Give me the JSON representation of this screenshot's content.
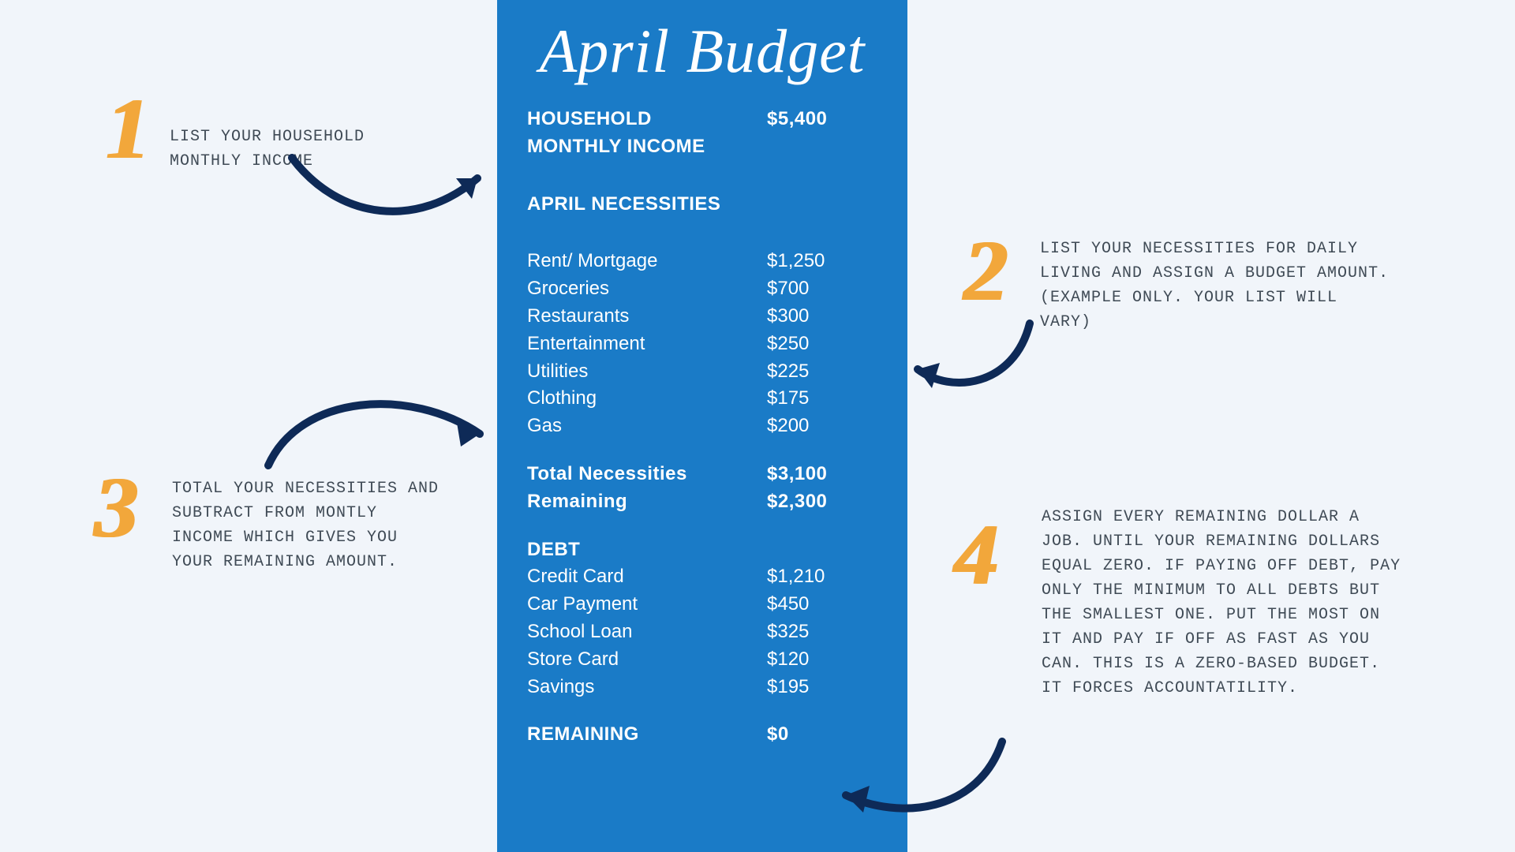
{
  "colors": {
    "page_bg": "#f1f5fa",
    "panel_bg": "#1a7bc7",
    "panel_text": "#ffffff",
    "digit": "#f2a73b",
    "note_text": "#3f4a55",
    "arrow": "#0e2a57"
  },
  "panel": {
    "title": "April Budget",
    "income_label": "HOUSEHOLD MONTHLY INCOME",
    "income_value": "$5,400",
    "nec_header": "APRIL NECESSITIES",
    "necessities": [
      {
        "label": "Rent/ Mortgage",
        "value": "$1,250"
      },
      {
        "label": "Groceries",
        "value": "$700"
      },
      {
        "label": "Restaurants",
        "value": "$300"
      },
      {
        "label": "Entertainment",
        "value": "$250"
      },
      {
        "label": "Utilities",
        "value": "$225"
      },
      {
        "label": "Clothing",
        "value": "$175"
      },
      {
        "label": "Gas",
        "value": "$200"
      }
    ],
    "total_label": "Total Necessities",
    "total_value": "$3,100",
    "remaining1_label": "Remaining",
    "remaining1_value": "$2,300",
    "debt_header": "DEBT",
    "debts": [
      {
        "label": "Credit Card",
        "value": "$1,210"
      },
      {
        "label": "Car Payment",
        "value": "$450"
      },
      {
        "label": "School Loan",
        "value": "$325"
      },
      {
        "label": "Store Card",
        "value": "$120"
      },
      {
        "label": "Savings",
        "value": "$195"
      }
    ],
    "remaining2_label": "REMAINING",
    "remaining2_value": "$0"
  },
  "steps": {
    "d1": "1",
    "d2": "2",
    "d3": "3",
    "d4": "4",
    "note1": "List your Household monthly income",
    "note2": "List your necessities for daily living and assign a budget amount.  (example only. Your list will vary)",
    "note3": "Total your Necessities and subtract from montly income which gives you your remaining amount.",
    "note4": "Assign every remaining dollar a job. Until your remaining dollars equal zero. If paying off debt, pay only the minimum to all debts but the smallest one. Put the most on it and pay if off as fast as you can.  This is a zero-based budget.  It forces accountatility."
  },
  "typography": {
    "title_fontsize": 78,
    "digit_fontsize": 110,
    "row_fontsize": 24,
    "note_fontsize": 20
  }
}
